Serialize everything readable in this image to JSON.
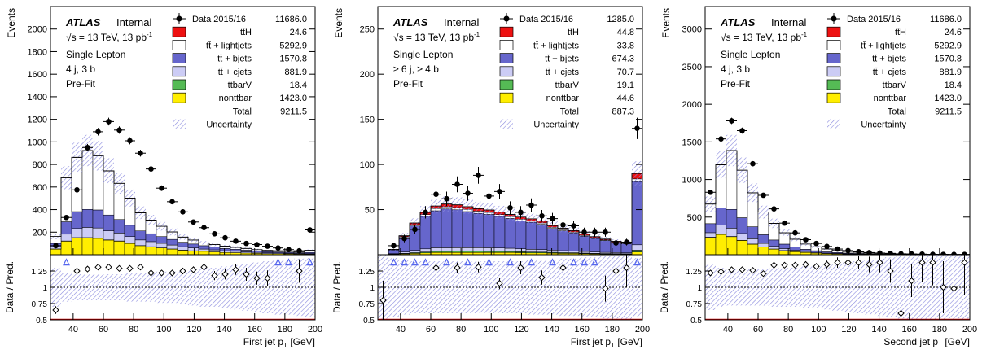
{
  "chart_data": [
    {
      "type": "bar",
      "xlabel": "First jet p",
      "xlabel_sub": "T",
      "xlabel_unit": "[GeV]",
      "ylabel": "Events",
      "ratio_ylabel": "Data / Pred.",
      "xlim": [
        25,
        200
      ],
      "ylim": [
        0,
        2200
      ],
      "ratio_ylim": [
        0.5,
        1.5
      ],
      "xticks": [
        40,
        60,
        80,
        100,
        120,
        140,
        160,
        180,
        200
      ],
      "yticks": [
        0,
        200,
        400,
        600,
        800,
        1000,
        1200,
        1400,
        1600,
        1800,
        2000
      ],
      "ratio_yticks": [
        "0.5",
        "0.75",
        "1",
        "1.25"
      ],
      "atlas": "ATLAS",
      "internal": "Internal",
      "energy": "√s = 13 TeV, 13 pb",
      "energy_sup": "-1",
      "region": [
        "Single Lepton",
        "4 j, 3 b",
        "Pre-Fit"
      ],
      "legend": [
        {
          "label": "Data 2015/16",
          "value": "11686.0",
          "kind": "data"
        },
        {
          "label": "tt̄H",
          "value": "24.6",
          "color": "#ee1111"
        },
        {
          "label": "tt̄ + lightjets",
          "value": "5292.9",
          "color": "#ffffff"
        },
        {
          "label": "tt̄ + bjets",
          "value": "1570.8",
          "color": "#6666cc"
        },
        {
          "label": "tt̄ + cjets",
          "value": "881.9",
          "color": "#ccccf5"
        },
        {
          "label": "ttbarV",
          "value": "18.4",
          "color": "#55bb55"
        },
        {
          "label": "nonttbar",
          "value": "1423.0",
          "color": "#ffee00"
        },
        {
          "label": "Total",
          "value": "9211.5",
          "kind": "total"
        },
        {
          "label": "Uncertainty",
          "value": "",
          "kind": "unc"
        }
      ],
      "bin_edges": [
        25,
        32,
        39,
        46,
        53,
        60,
        67,
        74,
        81,
        88,
        95,
        102,
        109,
        116,
        123,
        130,
        137,
        144,
        151,
        158,
        165,
        172,
        179,
        186,
        193,
        200
      ],
      "stack": {
        "nonttbar": [
          50,
          120,
          150,
          150,
          145,
          130,
          120,
          100,
          80,
          70,
          60,
          50,
          40,
          35,
          30,
          25,
          20,
          18,
          15,
          12,
          10,
          10,
          8,
          7,
          6
        ],
        "ttbarV": [
          1,
          2,
          2,
          2,
          2,
          2,
          2,
          1,
          1,
          1,
          1,
          1,
          1,
          0,
          0,
          0,
          0,
          0,
          0,
          0,
          0,
          0,
          0,
          0,
          0
        ],
        "tt_cjets": [
          20,
          60,
          80,
          90,
          90,
          80,
          70,
          60,
          50,
          45,
          40,
          35,
          30,
          25,
          20,
          18,
          15,
          12,
          10,
          8,
          7,
          6,
          5,
          4,
          4
        ],
        "tt_bjets": [
          30,
          110,
          150,
          160,
          160,
          140,
          120,
          100,
          80,
          70,
          60,
          50,
          40,
          35,
          30,
          25,
          20,
          18,
          15,
          12,
          10,
          9,
          8,
          7,
          10
        ],
        "tt_light": [
          60,
          390,
          480,
          520,
          480,
          390,
          320,
          240,
          160,
          120,
          90,
          65,
          45,
          35,
          25,
          22,
          20,
          17,
          15,
          13,
          11,
          10,
          9,
          8,
          20
        ],
        "ttH": [
          0.5,
          1,
          1.5,
          1.5,
          1.5,
          1.5,
          1.2,
          1,
          1,
          1,
          0.8,
          0.7,
          0.6,
          0.5,
          0.5,
          0.4,
          0.4,
          0.3,
          0.3,
          0.3,
          0.2,
          0.2,
          0.2,
          0.2,
          0.5
        ]
      },
      "data": [
        80,
        330,
        575,
        950,
        1090,
        1180,
        1105,
        1010,
        900,
        760,
        590,
        470,
        380,
        290,
        240,
        185,
        150,
        120,
        100,
        90,
        75,
        60,
        45,
        35,
        220
      ],
      "ratio": [
        0.65,
        1.42,
        1.25,
        1.28,
        1.31,
        1.31,
        1.29,
        1.29,
        1.31,
        1.22,
        1.22,
        1.22,
        1.25,
        1.27,
        1.31,
        1.18,
        1.2,
        1.27,
        1.2,
        1.14,
        1.14,
        1.42,
        1.42,
        1.25,
        1.41
      ],
      "ratio_err": [
        0.06,
        0.05,
        0.04,
        0.04,
        0.03,
        0.03,
        0.03,
        0.03,
        0.03,
        0.04,
        0.04,
        0.04,
        0.05,
        0.05,
        0.06,
        0.07,
        0.08,
        0.08,
        0.1,
        0.1,
        0.12,
        0.14,
        0.16,
        0.18,
        0.12
      ],
      "ratio_unc": [
        0.3,
        0.22,
        0.2,
        0.2,
        0.2,
        0.2,
        0.2,
        0.22,
        0.22,
        0.22,
        0.24,
        0.24,
        0.26,
        0.28,
        0.3,
        0.3,
        0.32,
        0.34,
        0.36,
        0.38,
        0.4,
        0.42,
        0.42,
        0.44,
        0.45
      ]
    },
    {
      "type": "bar",
      "xlabel": "First jet p",
      "xlabel_sub": "T",
      "xlabel_unit": "[GeV]",
      "ylabel": "Events",
      "ratio_ylabel": "Data / Pred.",
      "xlim": [
        25,
        200
      ],
      "ylim": [
        0,
        275
      ],
      "ratio_ylim": [
        0.5,
        1.5
      ],
      "xticks": [
        40,
        60,
        80,
        100,
        120,
        140,
        160,
        180,
        200
      ],
      "yticks": [
        0,
        50,
        100,
        150,
        200,
        250
      ],
      "ratio_yticks": [
        "0.5",
        "0.75",
        "1",
        "1.25"
      ],
      "atlas": "ATLAS",
      "internal": "Internal",
      "energy": "√s = 13 TeV, 13 pb",
      "energy_sup": "-1",
      "region": [
        "Single Lepton",
        "≥ 6 j, ≥ 4 b",
        "Pre-Fit"
      ],
      "legend": [
        {
          "label": "Data 2015/16",
          "value": "1285.0",
          "kind": "data"
        },
        {
          "label": "tt̄H",
          "value": "44.8",
          "color": "#ee1111"
        },
        {
          "label": "tt̄ + lightjets",
          "value": "33.8",
          "color": "#ffffff"
        },
        {
          "label": "tt̄ + bjets",
          "value": "674.3",
          "color": "#6666cc"
        },
        {
          "label": "tt̄ + cjets",
          "value": "70.7",
          "color": "#ccccf5"
        },
        {
          "label": "ttbarV",
          "value": "19.1",
          "color": "#55bb55"
        },
        {
          "label": "nonttbar",
          "value": "44.6",
          "color": "#ffee00"
        },
        {
          "label": "Total",
          "value": "887.3",
          "kind": "total"
        },
        {
          "label": "Uncertainty",
          "value": "",
          "kind": "unc"
        }
      ],
      "bin_edges": [
        25,
        32,
        39,
        46,
        53,
        60,
        67,
        74,
        81,
        88,
        95,
        102,
        109,
        116,
        123,
        130,
        137,
        144,
        151,
        158,
        165,
        172,
        179,
        186,
        193,
        200
      ],
      "stack": {
        "nonttbar": [
          0,
          0.5,
          1,
          1.5,
          2,
          2.5,
          2.5,
          2.5,
          2.5,
          2.5,
          2.5,
          2.5,
          2.5,
          2.3,
          2,
          2,
          1.8,
          1.5,
          1.5,
          1.2,
          1,
          0.8,
          0.8,
          0.7,
          3
        ],
        "ttbarV": [
          0,
          0.2,
          0.5,
          0.8,
          1,
          1.2,
          1.2,
          1.3,
          1.3,
          1.3,
          1.2,
          1.2,
          1.1,
          1,
          1,
          0.9,
          0.8,
          0.8,
          0.7,
          0.6,
          0.5,
          0.5,
          0.4,
          0.4,
          2
        ],
        "tt_cjets": [
          0,
          0.5,
          1.5,
          2.5,
          3.5,
          4,
          4,
          4,
          4,
          4,
          4,
          3.8,
          3.6,
          3.3,
          3,
          2.8,
          2.5,
          2.2,
          2,
          1.8,
          1.5,
          1.3,
          1.2,
          1,
          6
        ],
        "tt_light": [
          0,
          0.5,
          1,
          1.5,
          2,
          2.5,
          2.5,
          2.5,
          2.5,
          2.5,
          2.2,
          2,
          2,
          1.8,
          1.6,
          1.5,
          1.3,
          1.2,
          1,
          0.9,
          0.8,
          0.7,
          0.6,
          0.5,
          3
        ],
        "tt_bjets": [
          0,
          4,
          16,
          27,
          36,
          41,
          43,
          42,
          40,
          38,
          37,
          35,
          33,
          31,
          30,
          28,
          24,
          22,
          20,
          17,
          15,
          13,
          11,
          10,
          70
        ],
        "ttH": [
          0,
          0.3,
          1,
          1.8,
          2.4,
          2.8,
          3,
          3,
          3,
          2.8,
          2.7,
          2.6,
          2.5,
          2.3,
          2.2,
          2,
          1.8,
          1.6,
          1.5,
          1.3,
          1.2,
          1,
          0.9,
          0.8,
          6
        ]
      },
      "data": [
        0,
        10,
        18,
        28,
        47,
        67,
        62,
        78,
        68,
        88,
        65,
        70,
        52,
        47,
        55,
        43,
        40,
        33,
        32,
        25,
        25,
        25,
        13,
        14,
        140
      ],
      "ratio": [
        0.8,
        1.42,
        1.42,
        1.42,
        1.42,
        1.3,
        1.42,
        1.3,
        1.42,
        1.31,
        1.42,
        1.06,
        1.42,
        1.3,
        1.42,
        1.15,
        1.42,
        1.3,
        1.42,
        1.42,
        1.42,
        0.98,
        1.25,
        1.3,
        1.42
      ],
      "ratio_err": [
        0.3,
        0.2,
        0.15,
        0.12,
        0.1,
        0.09,
        0.09,
        0.08,
        0.08,
        0.08,
        0.09,
        0.09,
        0.1,
        0.1,
        0.1,
        0.11,
        0.12,
        0.13,
        0.14,
        0.15,
        0.15,
        0.2,
        0.25,
        0.3,
        0.08
      ],
      "ratio_unc": [
        0.5,
        0.45,
        0.42,
        0.4,
        0.4,
        0.4,
        0.4,
        0.4,
        0.4,
        0.4,
        0.4,
        0.4,
        0.4,
        0.4,
        0.42,
        0.42,
        0.42,
        0.44,
        0.44,
        0.46,
        0.46,
        0.48,
        0.48,
        0.5,
        0.45
      ]
    },
    {
      "type": "bar",
      "xlabel": "Second jet p",
      "xlabel_sub": "T",
      "xlabel_unit": "[GeV]",
      "ylabel": "Events",
      "ratio_ylabel": "Data / Pred.",
      "xlim": [
        25,
        200
      ],
      "ylim": [
        0,
        3300
      ],
      "ratio_ylim": [
        0.5,
        1.5
      ],
      "xticks": [
        40,
        60,
        80,
        100,
        120,
        140,
        160,
        180,
        200
      ],
      "yticks": [
        0,
        500,
        1000,
        1500,
        2000,
        2500,
        3000
      ],
      "ratio_yticks": [
        "0.5",
        "0.75",
        "1",
        "1.25"
      ],
      "atlas": "ATLAS",
      "internal": "Internal",
      "energy": "√s = 13 TeV, 13 pb",
      "energy_sup": "-1",
      "region": [
        "Single Lepton",
        "4 j, 3 b",
        "Pre-Fit"
      ],
      "legend": [
        {
          "label": "Data 2015/16",
          "value": "11686.0",
          "kind": "data"
        },
        {
          "label": "tt̄H",
          "value": "24.6",
          "color": "#ee1111"
        },
        {
          "label": "tt̄ + lightjets",
          "value": "5292.9",
          "color": "#ffffff"
        },
        {
          "label": "tt̄ + bjets",
          "value": "1570.8",
          "color": "#6666cc"
        },
        {
          "label": "tt̄ + cjets",
          "value": "881.9",
          "color": "#ccccf5"
        },
        {
          "label": "ttbarV",
          "value": "18.4",
          "color": "#55bb55"
        },
        {
          "label": "nonttbar",
          "value": "1423.0",
          "color": "#ffee00"
        },
        {
          "label": "Total",
          "value": "9211.5",
          "kind": "total"
        },
        {
          "label": "Uncertainty",
          "value": "",
          "kind": "unc"
        }
      ],
      "bin_edges": [
        25,
        32,
        39,
        46,
        53,
        60,
        67,
        74,
        81,
        88,
        95,
        102,
        109,
        116,
        123,
        130,
        137,
        144,
        151,
        158,
        165,
        172,
        179,
        186,
        193,
        200
      ],
      "stack": {
        "nonttbar": [
          230,
          270,
          240,
          190,
          140,
          100,
          75,
          55,
          40,
          30,
          22,
          16,
          12,
          9,
          7,
          5,
          4,
          3,
          2,
          2,
          1,
          1,
          1,
          1,
          1
        ],
        "ttbarV": [
          3,
          4,
          3,
          2,
          2,
          1,
          1,
          1,
          1,
          0,
          0,
          0,
          0,
          0,
          0,
          0,
          0,
          0,
          0,
          0,
          0,
          0,
          0,
          0,
          0
        ],
        "tt_cjets": [
          60,
          120,
          110,
          90,
          70,
          50,
          35,
          25,
          18,
          12,
          9,
          6,
          5,
          4,
          3,
          2,
          2,
          1,
          1,
          1,
          1,
          1,
          1,
          0,
          0
        ],
        "tt_bjets": [
          120,
          230,
          250,
          210,
          160,
          115,
          85,
          60,
          42,
          30,
          22,
          16,
          12,
          9,
          7,
          5,
          4,
          3,
          2,
          2,
          1,
          1,
          1,
          1,
          1
        ],
        "tt_light": [
          260,
          570,
          780,
          630,
          450,
          300,
          220,
          150,
          105,
          70,
          52,
          38,
          28,
          20,
          15,
          11,
          8,
          6,
          5,
          4,
          3,
          2,
          2,
          2,
          2
        ],
        "ttH": [
          1,
          2,
          2,
          2,
          1.5,
          1,
          1,
          0.5,
          0.5,
          0.3,
          0.2,
          0.2,
          0.1,
          0.1,
          0.1,
          0,
          0,
          0,
          0,
          0,
          0,
          0,
          0,
          0,
          0
        ]
      },
      "data": [
        830,
        1540,
        1780,
        1650,
        1210,
        790,
        610,
        420,
        290,
        200,
        150,
        110,
        75,
        55,
        40,
        28,
        22,
        18,
        12,
        10,
        8,
        5,
        4,
        3,
        3
      ],
      "ratio": [
        1.22,
        1.24,
        1.27,
        1.27,
        1.26,
        1.21,
        1.34,
        1.34,
        1.34,
        1.35,
        1.32,
        1.35,
        1.38,
        1.38,
        1.38,
        1.35,
        1.38,
        1.25,
        0.6,
        1.1,
        1.38,
        1.38,
        1.0,
        0.98,
        1.38
      ],
      "ratio_err": [
        0.02,
        0.02,
        0.02,
        0.02,
        0.02,
        0.03,
        0.03,
        0.03,
        0.04,
        0.05,
        0.05,
        0.06,
        0.08,
        0.09,
        0.1,
        0.12,
        0.15,
        0.18,
        0.05,
        0.25,
        0.3,
        0.35,
        0.4,
        0.45,
        0.5
      ],
      "ratio_unc": [
        0.35,
        0.3,
        0.28,
        0.28,
        0.28,
        0.28,
        0.3,
        0.3,
        0.3,
        0.32,
        0.32,
        0.34,
        0.36,
        0.38,
        0.4,
        0.42,
        0.44,
        0.46,
        0.48,
        0.5,
        0.5,
        0.5,
        0.5,
        0.5,
        0.5
      ]
    }
  ]
}
